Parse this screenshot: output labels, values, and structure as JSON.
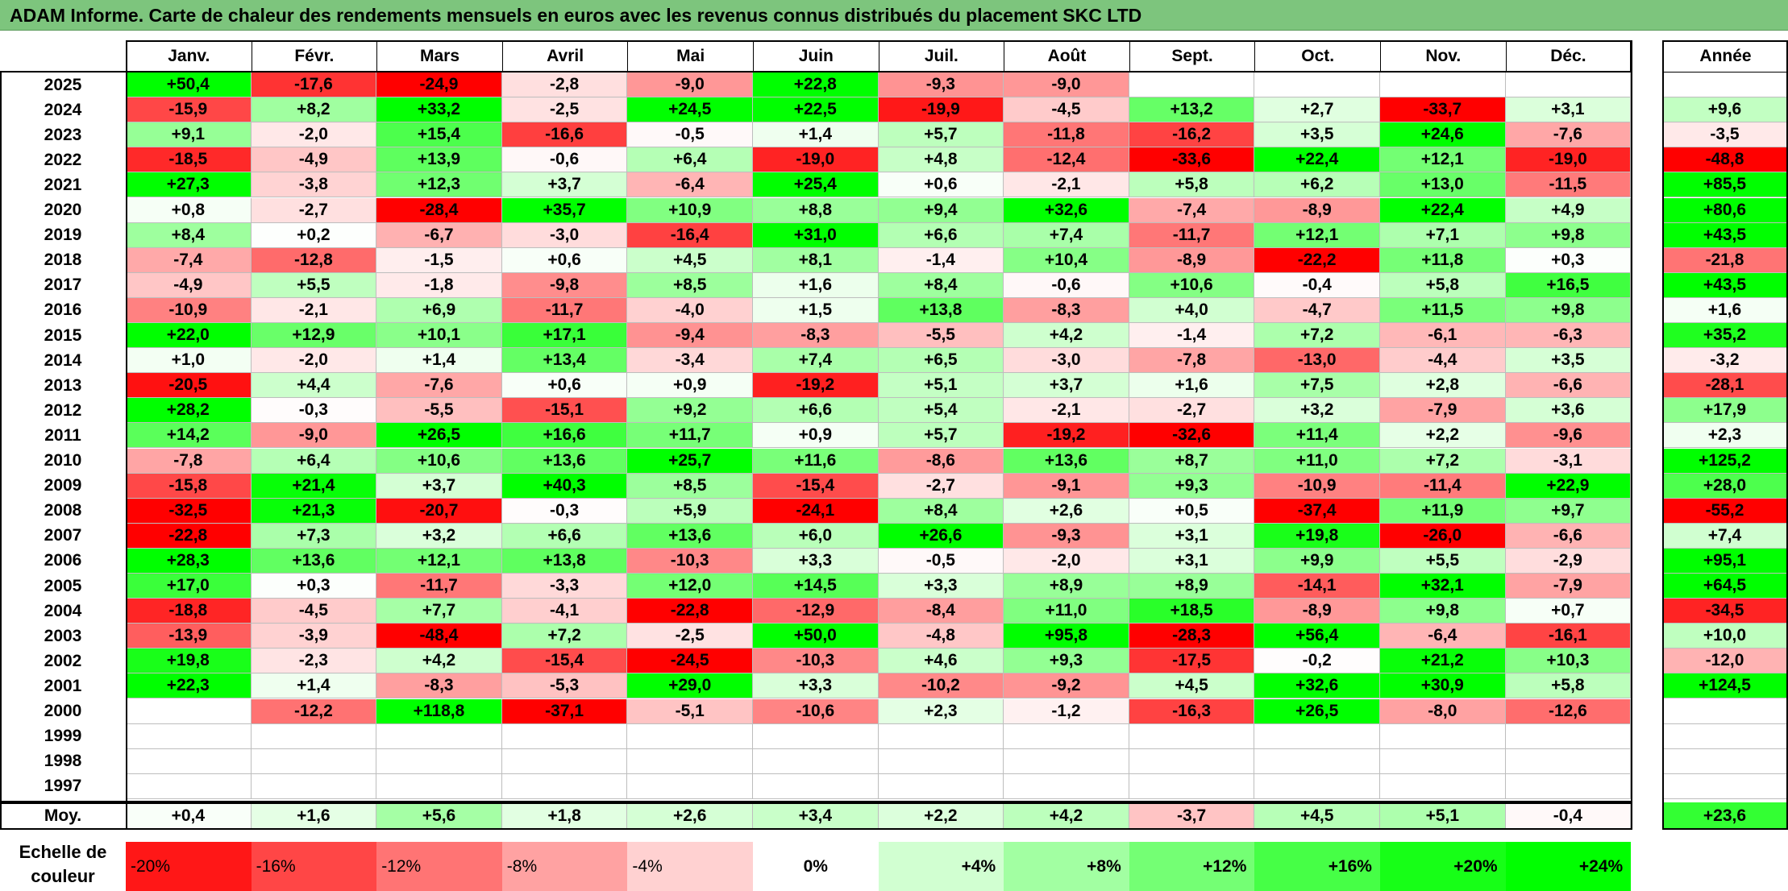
{
  "title": "ADAM Informe. Carte de chaleur des rendements mensuels en euros avec les revenus connus distribués du placement SKC LTD",
  "colors": {
    "title_bg": "#7dc57d",
    "max_red": "#ff0000",
    "max_green": "#00ff00",
    "neutral": "#ffffff"
  },
  "chart_data": {
    "type": "heatmap",
    "title": "ADAM Informe. Carte de chaleur des rendements mensuels en euros avec les revenus connus distribués du placement SKC LTD",
    "months": [
      "Janv.",
      "Févr.",
      "Mars",
      "Avril",
      "Mai",
      "Juin",
      "Juil.",
      "Août",
      "Sept.",
      "Oct.",
      "Nov.",
      "Déc."
    ],
    "annual_header": "Année",
    "rows": [
      {
        "year": "2025",
        "values": [
          "+50,4",
          "-17,6",
          "-24,9",
          "-2,8",
          "-9,0",
          "+22,8",
          "-9,3",
          "-9,0",
          "",
          "",
          "",
          ""
        ],
        "annual": ""
      },
      {
        "year": "2024",
        "values": [
          "-15,9",
          "+8,2",
          "+33,2",
          "-2,5",
          "+24,5",
          "+22,5",
          "-19,9",
          "-4,5",
          "+13,2",
          "+2,7",
          "-33,7",
          "+3,1"
        ],
        "annual": "+9,6"
      },
      {
        "year": "2023",
        "values": [
          "+9,1",
          "-2,0",
          "+15,4",
          "-16,6",
          "-0,5",
          "+1,4",
          "+5,7",
          "-11,8",
          "-16,2",
          "+3,5",
          "+24,6",
          "-7,6"
        ],
        "annual": "-3,5"
      },
      {
        "year": "2022",
        "values": [
          "-18,5",
          "-4,9",
          "+13,9",
          "-0,6",
          "+6,4",
          "-19,0",
          "+4,8",
          "-12,4",
          "-33,6",
          "+22,4",
          "+12,1",
          "-19,0"
        ],
        "annual": "-48,8"
      },
      {
        "year": "2021",
        "values": [
          "+27,3",
          "-3,8",
          "+12,3",
          "+3,7",
          "-6,4",
          "+25,4",
          "+0,6",
          "-2,1",
          "+5,8",
          "+6,2",
          "+13,0",
          "-11,5"
        ],
        "annual": "+85,5"
      },
      {
        "year": "2020",
        "values": [
          "+0,8",
          "-2,7",
          "-28,4",
          "+35,7",
          "+10,9",
          "+8,8",
          "+9,4",
          "+32,6",
          "-7,4",
          "-8,9",
          "+22,4",
          "+4,9"
        ],
        "annual": "+80,6"
      },
      {
        "year": "2019",
        "values": [
          "+8,4",
          "+0,2",
          "-6,7",
          "-3,0",
          "-16,4",
          "+31,0",
          "+6,6",
          "+7,4",
          "-11,7",
          "+12,1",
          "+7,1",
          "+9,8"
        ],
        "annual": "+43,5"
      },
      {
        "year": "2018",
        "values": [
          "-7,4",
          "-12,8",
          "-1,5",
          "+0,6",
          "+4,5",
          "+8,1",
          "-1,4",
          "+10,4",
          "-8,9",
          "-22,2",
          "+11,8",
          "+0,3"
        ],
        "annual": "-21,8"
      },
      {
        "year": "2017",
        "values": [
          "-4,9",
          "+5,5",
          "-1,8",
          "-9,8",
          "+8,5",
          "+1,6",
          "+8,4",
          "-0,6",
          "+10,6",
          "-0,4",
          "+5,8",
          "+16,5"
        ],
        "annual": "+43,5"
      },
      {
        "year": "2016",
        "values": [
          "-10,9",
          "-2,1",
          "+6,9",
          "-11,7",
          "-4,0",
          "+1,5",
          "+13,8",
          "-8,3",
          "+4,0",
          "-4,7",
          "+11,5",
          "+9,8"
        ],
        "annual": "+1,6"
      },
      {
        "year": "2015",
        "values": [
          "+22,0",
          "+12,9",
          "+10,1",
          "+17,1",
          "-9,4",
          "-8,3",
          "-5,5",
          "+4,2",
          "-1,4",
          "+7,2",
          "-6,1",
          "-6,3"
        ],
        "annual": "+35,2"
      },
      {
        "year": "2014",
        "values": [
          "+1,0",
          "-2,0",
          "+1,4",
          "+13,4",
          "-3,4",
          "+7,4",
          "+6,5",
          "-3,0",
          "-7,8",
          "-13,0",
          "-4,4",
          "+3,5"
        ],
        "annual": "-3,2"
      },
      {
        "year": "2013",
        "values": [
          "-20,5",
          "+4,4",
          "-7,6",
          "+0,6",
          "+0,9",
          "-19,2",
          "+5,1",
          "+3,7",
          "+1,6",
          "+7,5",
          "+2,8",
          "-6,6"
        ],
        "annual": "-28,1"
      },
      {
        "year": "2012",
        "values": [
          "+28,2",
          "-0,3",
          "-5,5",
          "-15,1",
          "+9,2",
          "+6,6",
          "+5,4",
          "-2,1",
          "-2,7",
          "+3,2",
          "-7,9",
          "+3,6"
        ],
        "annual": "+17,9"
      },
      {
        "year": "2011",
        "values": [
          "+14,2",
          "-9,0",
          "+26,5",
          "+16,6",
          "+11,7",
          "+0,9",
          "+5,7",
          "-19,2",
          "-32,6",
          "+11,4",
          "+2,2",
          "-9,6"
        ],
        "annual": "+2,3"
      },
      {
        "year": "2010",
        "values": [
          "-7,8",
          "+6,4",
          "+10,6",
          "+13,6",
          "+25,7",
          "+11,6",
          "-8,6",
          "+13,6",
          "+8,7",
          "+11,0",
          "+7,2",
          "-3,1"
        ],
        "annual": "+125,2"
      },
      {
        "year": "2009",
        "values": [
          "-15,8",
          "+21,4",
          "+3,7",
          "+40,3",
          "+8,5",
          "-15,4",
          "-2,7",
          "-9,1",
          "+9,3",
          "-10,9",
          "-11,4",
          "+22,9"
        ],
        "annual": "+28,0"
      },
      {
        "year": "2008",
        "values": [
          "-32,5",
          "+21,3",
          "-20,7",
          "-0,3",
          "+5,9",
          "-24,1",
          "+8,4",
          "+2,6",
          "+0,5",
          "-37,4",
          "+11,9",
          "+9,7"
        ],
        "annual": "-55,2"
      },
      {
        "year": "2007",
        "values": [
          "-22,8",
          "+7,3",
          "+3,2",
          "+6,6",
          "+13,6",
          "+6,0",
          "+26,6",
          "-9,3",
          "+3,1",
          "+19,8",
          "-26,0",
          "-6,6"
        ],
        "annual": "+7,4"
      },
      {
        "year": "2006",
        "values": [
          "+28,3",
          "+13,6",
          "+12,1",
          "+13,8",
          "-10,3",
          "+3,3",
          "-0,5",
          "-2,0",
          "+3,1",
          "+9,9",
          "+5,5",
          "-2,9"
        ],
        "annual": "+95,1"
      },
      {
        "year": "2005",
        "values": [
          "+17,0",
          "+0,3",
          "-11,7",
          "-3,3",
          "+12,0",
          "+14,5",
          "+3,3",
          "+8,9",
          "+8,9",
          "-14,1",
          "+32,1",
          "-7,9"
        ],
        "annual": "+64,5"
      },
      {
        "year": "2004",
        "values": [
          "-18,8",
          "-4,5",
          "+7,7",
          "-4,1",
          "-22,8",
          "-12,9",
          "-8,4",
          "+11,0",
          "+18,5",
          "-8,9",
          "+9,8",
          "+0,7"
        ],
        "annual": "-34,5"
      },
      {
        "year": "2003",
        "values": [
          "-13,9",
          "-3,9",
          "-48,4",
          "+7,2",
          "-2,5",
          "+50,0",
          "-4,8",
          "+95,8",
          "-28,3",
          "+56,4",
          "-6,4",
          "-16,1"
        ],
        "annual": "+10,0"
      },
      {
        "year": "2002",
        "values": [
          "+19,8",
          "-2,3",
          "+4,2",
          "-15,4",
          "-24,5",
          "-10,3",
          "+4,6",
          "+9,3",
          "-17,5",
          "-0,2",
          "+21,2",
          "+10,3"
        ],
        "annual": "-12,0"
      },
      {
        "year": "2001",
        "values": [
          "+22,3",
          "+1,4",
          "-8,3",
          "-5,3",
          "+29,0",
          "+3,3",
          "-10,2",
          "-9,2",
          "+4,5",
          "+32,6",
          "+30,9",
          "+5,8"
        ],
        "annual": "+124,5"
      },
      {
        "year": "2000",
        "values": [
          "",
          "-12,2",
          "+118,8",
          "-37,1",
          "-5,1",
          "-10,6",
          "+2,3",
          "-1,2",
          "-16,3",
          "+26,5",
          "-8,0",
          "-12,6"
        ],
        "annual": ""
      },
      {
        "year": "1999",
        "values": [
          "",
          "",
          "",
          "",
          "",
          "",
          "",
          "",
          "",
          "",
          "",
          ""
        ],
        "annual": ""
      },
      {
        "year": "1998",
        "values": [
          "",
          "",
          "",
          "",
          "",
          "",
          "",
          "",
          "",
          "",
          "",
          ""
        ],
        "annual": ""
      },
      {
        "year": "1997",
        "values": [
          "",
          "",
          "",
          "",
          "",
          "",
          "",
          "",
          "",
          "",
          "",
          ""
        ],
        "annual": ""
      }
    ],
    "average": {
      "label": "Moy.",
      "values": [
        "+0,4",
        "+1,6",
        "+5,6",
        "+1,8",
        "+2,6",
        "+3,4",
        "+2,2",
        "+4,2",
        "-3,7",
        "+4,5",
        "+5,1",
        "-0,4"
      ],
      "annual": "+23,6"
    },
    "color_scale": {
      "label": "Echelle de couleur",
      "labels": [
        "-20%",
        "-16%",
        "-12%",
        "-8%",
        "-4%",
        "0%",
        "+4%",
        "+8%",
        "+12%",
        "+16%",
        "+20%",
        "+24%"
      ],
      "values": [
        -20,
        -16,
        -12,
        -8,
        -4,
        0,
        4,
        8,
        12,
        16,
        20,
        24
      ]
    }
  }
}
